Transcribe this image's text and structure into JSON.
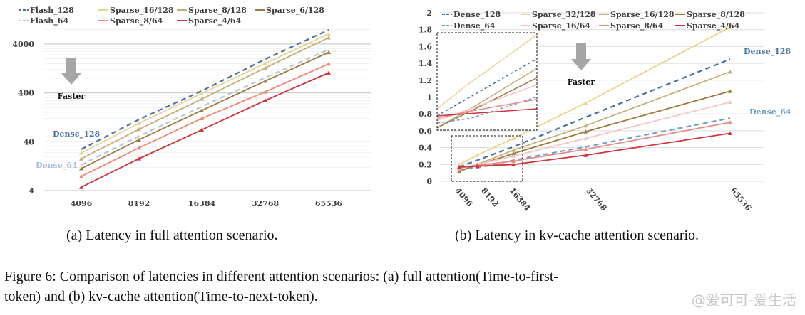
{
  "chart_data": [
    {
      "type": "line",
      "id": "a",
      "yscale": "log",
      "ylim": [
        4,
        10000
      ],
      "yticks": [
        "4",
        "40",
        "400",
        "4000"
      ],
      "categories": [
        "4096",
        "8192",
        "16384",
        "32768",
        "65536"
      ],
      "grid": true,
      "legend": "top",
      "annotations": {
        "arrow_label": "Faster",
        "dense_128": "Dense_128",
        "dense_64": "Dense_64"
      },
      "series": [
        {
          "name": "Flash_128",
          "color": "#4a6fa5",
          "dashed": true,
          "values": [
            28,
            114,
            440,
            1960,
            7800
          ]
        },
        {
          "name": "Sparse_16/128",
          "color": "#ead58f",
          "dashed": false,
          "values": [
            23.5,
            95,
            390,
            1600,
            6450
          ]
        },
        {
          "name": "Sparse_8/128",
          "color": "#c4ae7a",
          "dashed": false,
          "values": [
            17.9,
            72,
            300,
            1300,
            5400
          ]
        },
        {
          "name": "Sparse_6/128",
          "color": "#9c7b3c",
          "dashed": false,
          "values": [
            11.3,
            44,
            175,
            700,
            2700
          ]
        },
        {
          "name": "Flash_64",
          "color": "#b3c6e0",
          "dashed": true,
          "values": [
            13.5,
            52,
            210,
            820,
            3100
          ]
        },
        {
          "name": "Sparse_8/64",
          "color": "#f08870",
          "dashed": false,
          "values": [
            7.8,
            30,
            120,
            420,
            1570
          ]
        },
        {
          "name": "Sparse_4/64",
          "color": "#d0343a",
          "dashed": false,
          "values": [
            4.7,
            18,
            70,
            280,
            1030
          ]
        }
      ],
      "caption": "(a) Latency in full attention scenario."
    },
    {
      "type": "line",
      "id": "b",
      "yscale": "linear",
      "ylim": [
        0,
        2
      ],
      "yticks": [
        "0",
        "0.2",
        "0.4",
        "0.6",
        "0.8",
        "1",
        "1.2",
        "1.4",
        "1.6",
        "1.8",
        "2"
      ],
      "x": [
        4096,
        8192,
        16384,
        32768,
        65536
      ],
      "xtick_labels": [
        "4096",
        "8192",
        "16384",
        "32768",
        "65536"
      ],
      "grid": true,
      "legend": "top",
      "inset": "zoom of 4096-16384 region",
      "annotations": {
        "arrow_label": "Faster",
        "dense_128": "Dense_128",
        "dense_64": "Dense_64"
      },
      "series": [
        {
          "name": "Dense_128",
          "color": "#4a6fa5",
          "dashed": true,
          "values": [
            0.17,
            0.25,
            0.41,
            0.76,
            1.45
          ]
        },
        {
          "name": "Sparse_32/128",
          "color": "#ead58f",
          "dashed": false,
          "values": [
            0.2,
            0.31,
            0.51,
            0.93,
            1.83
          ]
        },
        {
          "name": "Sparse_16/128",
          "color": "#c4ae7a",
          "dashed": false,
          "values": [
            0.12,
            0.2,
            0.37,
            0.66,
            1.3
          ]
        },
        {
          "name": "Sparse_8/128",
          "color": "#9c7b3c",
          "dashed": false,
          "values": [
            0.12,
            0.19,
            0.33,
            0.59,
            1.07
          ]
        },
        {
          "name": "Dense_64",
          "color": "#6f9fc8",
          "dashed": true,
          "values": [
            0.14,
            0.16,
            0.25,
            0.41,
            0.75
          ]
        },
        {
          "name": "Sparse_16/64",
          "color": "#f5c6c6",
          "dashed": false,
          "values": [
            0.15,
            0.2,
            0.3,
            0.51,
            0.94
          ]
        },
        {
          "name": "Sparse_8/64",
          "color": "#ee8a86",
          "dashed": false,
          "values": [
            0.16,
            0.19,
            0.24,
            0.38,
            0.7
          ]
        },
        {
          "name": "Sparse_4/64",
          "color": "#d0343a",
          "dashed": false,
          "values": [
            0.17,
            0.18,
            0.2,
            0.31,
            0.57
          ]
        }
      ],
      "caption": "(b) Latency in kv-cache attention scenario."
    }
  ],
  "figure_caption_line1": "Figure 6: Comparison of latencies in different attention scenarios: (a) full attention(Time-to-first-",
  "figure_caption_line2": "token) and (b) kv-cache attention(Time-to-next-token).",
  "watermark": "@爱可可-爱生活"
}
